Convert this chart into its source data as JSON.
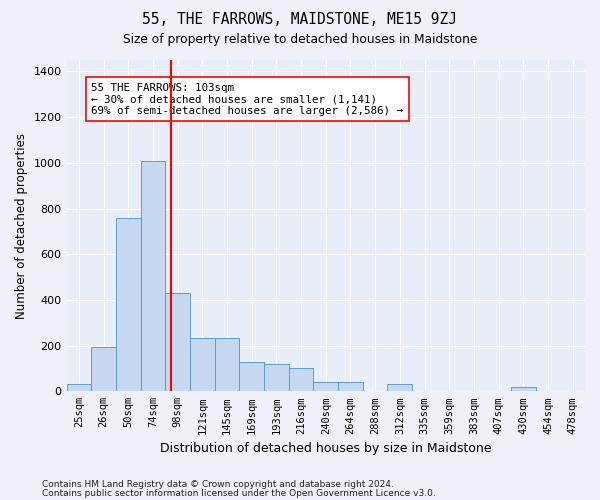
{
  "title": "55, THE FARROWS, MAIDSTONE, ME15 9ZJ",
  "subtitle": "Size of property relative to detached houses in Maidstone",
  "xlabel": "Distribution of detached houses by size in Maidstone",
  "ylabel": "Number of detached properties",
  "bin_labels": [
    "25sqm",
    "26sqm",
    "50sqm",
    "74sqm",
    "98sqm",
    "121sqm",
    "145sqm",
    "169sqm",
    "193sqm",
    "216sqm",
    "240sqm",
    "264sqm",
    "288sqm",
    "312sqm",
    "335sqm",
    "359sqm",
    "383sqm",
    "407sqm",
    "430sqm",
    "454sqm",
    "478sqm"
  ],
  "bar_heights": [
    30,
    195,
    760,
    1010,
    430,
    235,
    235,
    130,
    120,
    100,
    40,
    40,
    0,
    30,
    0,
    0,
    0,
    0,
    20,
    0,
    0
  ],
  "bar_color": "#c5d8f0",
  "bar_edge_color": "#5b9bd5",
  "vline_bin_index": 4,
  "vline_color": "red",
  "annotation_text": "55 THE FARROWS: 103sqm\n← 30% of detached houses are smaller (1,141)\n69% of semi-detached houses are larger (2,586) →",
  "annotation_box_color": "white",
  "annotation_box_edge": "red",
  "ylim": [
    0,
    1450
  ],
  "yticks": [
    0,
    200,
    400,
    600,
    800,
    1000,
    1200,
    1400
  ],
  "footer1": "Contains HM Land Registry data © Crown copyright and database right 2024.",
  "footer2": "Contains public sector information licensed under the Open Government Licence v3.0.",
  "bg_color": "#eef2f8",
  "plot_bg": "#e8eef8"
}
